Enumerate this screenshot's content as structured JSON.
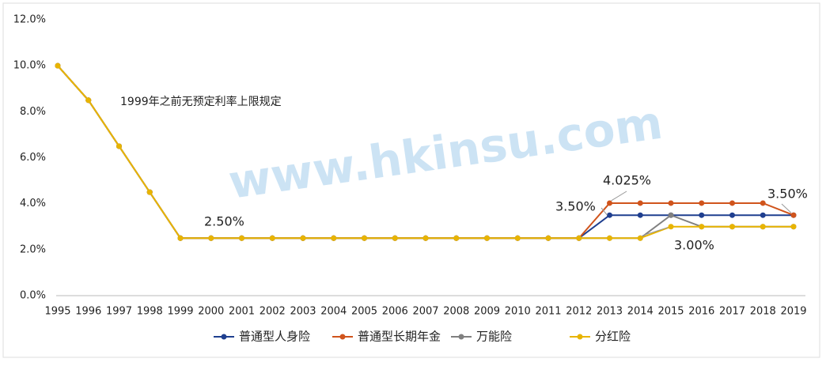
{
  "chart_data": {
    "type": "line",
    "categories": [
      "1995",
      "1996",
      "1997",
      "1998",
      "1999",
      "2000",
      "2001",
      "2002",
      "2003",
      "2004",
      "2005",
      "2006",
      "2007",
      "2008",
      "2009",
      "2010",
      "2011",
      "2012",
      "2013",
      "2014",
      "2015",
      "2016",
      "2017",
      "2018",
      "2019"
    ],
    "series": [
      {
        "name": "普通型人身险",
        "color": "#1f3f8f",
        "values": [
          10,
          8.5,
          6.5,
          4.5,
          2.5,
          2.5,
          2.5,
          2.5,
          2.5,
          2.5,
          2.5,
          2.5,
          2.5,
          2.5,
          2.5,
          2.5,
          2.5,
          2.5,
          3.5,
          3.5,
          3.5,
          3.5,
          3.5,
          3.5,
          3.5
        ]
      },
      {
        "name": "普通型长期年金",
        "color": "#d0541c",
        "values": [
          10,
          8.5,
          6.5,
          4.5,
          2.5,
          2.5,
          2.5,
          2.5,
          2.5,
          2.5,
          2.5,
          2.5,
          2.5,
          2.5,
          2.5,
          2.5,
          2.5,
          2.5,
          4.025,
          4.025,
          4.025,
          4.025,
          4.025,
          4.025,
          3.5
        ]
      },
      {
        "name": "万能险",
        "color": "#808080",
        "values": [
          10,
          8.5,
          6.5,
          4.5,
          2.5,
          2.5,
          2.5,
          2.5,
          2.5,
          2.5,
          2.5,
          2.5,
          2.5,
          2.5,
          2.5,
          2.5,
          2.5,
          2.5,
          2.5,
          2.5,
          3.5,
          3.0,
          3.0,
          3.0,
          3.0
        ]
      },
      {
        "name": "分红险",
        "color": "#e8b400",
        "values": [
          10,
          8.5,
          6.5,
          4.5,
          2.5,
          2.5,
          2.5,
          2.5,
          2.5,
          2.5,
          2.5,
          2.5,
          2.5,
          2.5,
          2.5,
          2.5,
          2.5,
          2.5,
          2.5,
          2.5,
          3.0,
          3.0,
          3.0,
          3.0,
          3.0
        ]
      }
    ],
    "ylim": [
      0,
      12
    ],
    "yticks": [
      {
        "value": 0,
        "label": "0.0%"
      },
      {
        "value": 2,
        "label": "2.0%"
      },
      {
        "value": 4,
        "label": "4.0%"
      },
      {
        "value": 6,
        "label": "6.0%"
      },
      {
        "value": 8,
        "label": "8.0%"
      },
      {
        "value": 10,
        "label": "10.0%"
      },
      {
        "value": 12,
        "label": "12.0%"
      }
    ],
    "grid": false,
    "legend": "bottom",
    "annotations": [
      "1999年之前无预定利率上限规定",
      "2.50%",
      "4.025%",
      "3.50%",
      "3.50%",
      "3.00%"
    ],
    "watermark": "www.hkinsu.com"
  }
}
